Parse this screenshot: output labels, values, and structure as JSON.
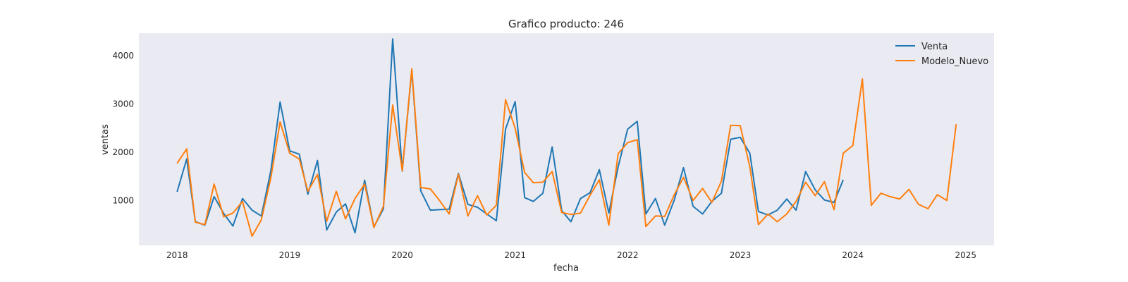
{
  "chart_data": {
    "type": "line",
    "title": "Grafico producto: 246",
    "xlabel": "fecha",
    "ylabel": "ventas",
    "x_start": "2018-01",
    "x_end": "2024-12",
    "xlim": [
      "2017-08-30",
      "2025-04-03"
    ],
    "ylim": [
      70,
      4470
    ],
    "xticks": [
      "2018",
      "2019",
      "2020",
      "2021",
      "2022",
      "2023",
      "2024",
      "2025"
    ],
    "yticks": [
      1000,
      2000,
      3000,
      4000
    ],
    "grid": false,
    "legend_position": "top-right",
    "series": [
      {
        "name": "Venta",
        "color": "#1f77b4",
        "values": [
          1180,
          1860,
          560,
          490,
          1080,
          730,
          470,
          1040,
          800,
          680,
          1620,
          3040,
          2030,
          1960,
          1130,
          1830,
          390,
          760,
          930,
          330,
          1420,
          450,
          830,
          4350,
          1610,
          3700,
          1200,
          800,
          810,
          820,
          1560,
          920,
          860,
          720,
          580,
          2480,
          3050,
          1060,
          980,
          1150,
          2110,
          790,
          560,
          1040,
          1160,
          1640,
          740,
          1700,
          2480,
          2640,
          720,
          1040,
          490,
          1010,
          1680,
          880,
          720,
          980,
          1150,
          2270,
          2310,
          1980,
          770,
          700,
          800,
          1030,
          800,
          1600,
          1220,
          1010,
          960,
          1430
        ]
      },
      {
        "name": "Modelo_Nuevo",
        "color": "#ff7f0e",
        "values": [
          1770,
          2070,
          550,
          500,
          1340,
          660,
          740,
          980,
          260,
          600,
          1470,
          2630,
          1980,
          1860,
          1190,
          1540,
          570,
          1190,
          620,
          1040,
          1340,
          440,
          880,
          2980,
          1620,
          3730,
          1270,
          1240,
          1000,
          720,
          1540,
          680,
          1100,
          700,
          900,
          3090,
          2500,
          1580,
          1370,
          1380,
          1600,
          750,
          710,
          740,
          1110,
          1430,
          490,
          1970,
          2200,
          2260,
          460,
          680,
          670,
          1120,
          1480,
          1000,
          1250,
          960,
          1400,
          2560,
          2550,
          1700,
          500,
          720,
          560,
          720,
          980,
          1380,
          1100,
          1390,
          810,
          1980,
          2140,
          3520,
          900,
          1150,
          1080,
          1030,
          1230,
          920,
          830,
          1120,
          1000,
          2580
        ]
      }
    ]
  }
}
